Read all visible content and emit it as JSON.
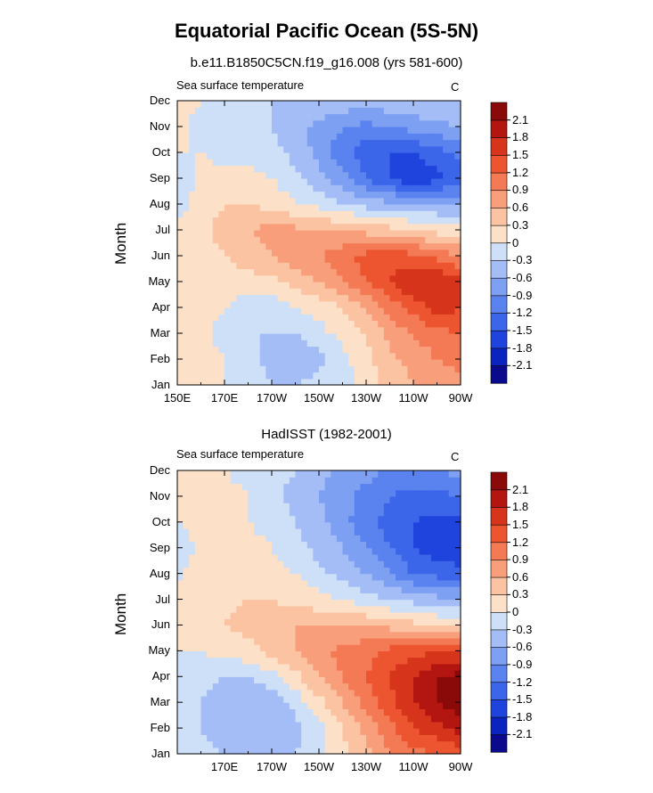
{
  "title": "Equatorial Pacific Ocean (5S-5N)",
  "units": "C",
  "chart_data": [
    {
      "type": "heatmap",
      "title": "b.e11.B1850C5CN.f19_g16.008 (yrs 581-600)",
      "subtitle": "Sea surface temperature",
      "units": "C",
      "ylabel": "Month",
      "xlabel": "",
      "x_tick_labels": [
        "150E",
        "170E",
        "170W",
        "150W",
        "130W",
        "110W",
        "90W"
      ],
      "y_tick_labels": [
        "Jan",
        "Feb",
        "Mar",
        "Apr",
        "May",
        "Jun",
        "Jul",
        "Aug",
        "Sep",
        "Oct",
        "Nov",
        "Dec"
      ],
      "colorbar_labels": [
        "2.1",
        "1.8",
        "1.5",
        "1.2",
        "0.9",
        "0.6",
        "0.3",
        "0",
        "-0.3",
        "-0.6",
        "-0.9",
        "-1.2",
        "-1.5",
        "-1.8",
        "-2.1"
      ],
      "longitudes": [
        150,
        160,
        170,
        180,
        190,
        200,
        210,
        220,
        230,
        240,
        250,
        260,
        270
      ],
      "months": [
        "Jan",
        "Feb",
        "Mar",
        "Apr",
        "May",
        "Jun",
        "Jul",
        "Aug",
        "Sep",
        "Oct",
        "Nov",
        "Dec"
      ],
      "values": [
        [
          0.0,
          0.1,
          0.0,
          -0.1,
          -0.3,
          -0.3,
          -0.2,
          -0.1,
          0.1,
          0.4,
          0.6,
          0.7,
          0.8
        ],
        [
          0.0,
          0.1,
          0.0,
          -0.2,
          -0.4,
          -0.5,
          -0.4,
          -0.1,
          0.2,
          0.5,
          0.7,
          0.9,
          1.0
        ],
        [
          0.1,
          0.1,
          -0.1,
          -0.3,
          -0.3,
          -0.3,
          -0.1,
          0.1,
          0.3,
          0.7,
          0.9,
          1.1,
          1.2
        ],
        [
          0.1,
          0.1,
          0.0,
          -0.2,
          -0.2,
          0.0,
          0.1,
          0.3,
          0.6,
          1.0,
          1.3,
          1.7,
          1.5
        ],
        [
          0.2,
          0.2,
          0.2,
          0.2,
          0.2,
          0.4,
          0.6,
          0.9,
          1.2,
          1.5,
          1.8,
          1.8,
          1.6
        ],
        [
          0.1,
          0.2,
          0.3,
          0.4,
          0.6,
          0.8,
          0.9,
          1.1,
          1.3,
          1.4,
          1.3,
          1.1,
          0.9
        ],
        [
          0.1,
          0.2,
          0.4,
          0.6,
          0.7,
          0.7,
          0.6,
          0.6,
          0.5,
          0.4,
          0.3,
          0.2,
          0.1
        ],
        [
          -0.2,
          0.2,
          0.3,
          0.3,
          0.2,
          0.0,
          -0.1,
          -0.3,
          -0.4,
          -0.5,
          -0.6,
          -0.6,
          -0.6
        ],
        [
          -0.3,
          0.1,
          0.1,
          0.1,
          0.0,
          -0.2,
          -0.5,
          -0.8,
          -1.2,
          -1.5,
          -1.8,
          -1.6,
          -1.4
        ],
        [
          0.0,
          0.0,
          -0.1,
          -0.1,
          -0.2,
          -0.4,
          -0.7,
          -1.1,
          -1.4,
          -1.5,
          -1.5,
          -1.3,
          -1.1
        ],
        [
          0.1,
          -0.1,
          -0.1,
          -0.2,
          -0.3,
          -0.5,
          -0.7,
          -0.9,
          -1.0,
          -0.9,
          -0.8,
          -0.7,
          -0.6
        ],
        [
          0.1,
          0.0,
          -0.1,
          -0.2,
          -0.3,
          -0.3,
          -0.3,
          -0.4,
          -0.4,
          -0.4,
          -0.3,
          -0.3,
          -0.3
        ]
      ]
    },
    {
      "type": "heatmap",
      "title": "HadISST (1982-2001)",
      "subtitle": "Sea surface temperature",
      "units": "C",
      "ylabel": "Month",
      "xlabel": "",
      "x_tick_labels": [
        "170E",
        "170W",
        "150W",
        "130W",
        "110W",
        "90W"
      ],
      "y_tick_labels": [
        "Jan",
        "Feb",
        "Mar",
        "Apr",
        "May",
        "Jun",
        "Jul",
        "Aug",
        "Sep",
        "Oct",
        "Nov",
        "Dec"
      ],
      "colorbar_labels": [
        "2.1",
        "1.8",
        "1.5",
        "1.2",
        "0.9",
        "0.6",
        "0.3",
        "0",
        "-0.3",
        "-0.6",
        "-0.9",
        "-1.2",
        "-1.5",
        "-1.8",
        "-2.1"
      ],
      "longitudes": [
        150,
        160,
        170,
        180,
        190,
        200,
        210,
        220,
        230,
        240,
        250,
        260,
        270
      ],
      "months": [
        "Jan",
        "Feb",
        "Mar",
        "Apr",
        "May",
        "Jun",
        "Jul",
        "Aug",
        "Sep",
        "Oct",
        "Nov",
        "Dec"
      ],
      "values": [
        [
          0.0,
          -0.2,
          -0.3,
          -0.4,
          -0.4,
          -0.3,
          -0.1,
          0.2,
          0.5,
          0.9,
          1.1,
          1.2,
          1.3
        ],
        [
          -0.1,
          -0.3,
          -0.5,
          -0.6,
          -0.6,
          -0.4,
          -0.1,
          0.3,
          0.7,
          1.1,
          1.5,
          1.7,
          1.9
        ],
        [
          -0.1,
          -0.3,
          -0.5,
          -0.6,
          -0.5,
          -0.2,
          0.2,
          0.6,
          1.0,
          1.4,
          1.8,
          2.1,
          2.3
        ],
        [
          -0.1,
          -0.2,
          -0.3,
          -0.3,
          -0.1,
          0.2,
          0.6,
          0.9,
          1.2,
          1.5,
          1.8,
          2.1,
          2.2
        ],
        [
          0.0,
          0.0,
          0.1,
          0.2,
          0.4,
          0.6,
          0.8,
          1.0,
          1.1,
          1.3,
          1.4,
          1.5,
          1.5
        ],
        [
          0.1,
          0.2,
          0.3,
          0.4,
          0.5,
          0.6,
          0.6,
          0.6,
          0.6,
          0.5,
          0.4,
          0.3,
          0.2
        ],
        [
          0.1,
          0.2,
          0.2,
          0.3,
          0.3,
          0.2,
          0.1,
          0.0,
          -0.2,
          -0.3,
          -0.4,
          -0.5,
          -0.6
        ],
        [
          -0.1,
          0.2,
          0.2,
          0.2,
          0.1,
          0.0,
          -0.2,
          -0.4,
          -0.6,
          -0.9,
          -1.2,
          -1.3,
          -1.4
        ],
        [
          -0.2,
          0.1,
          0.2,
          0.1,
          0.0,
          -0.2,
          -0.4,
          -0.6,
          -0.9,
          -1.2,
          -1.5,
          -1.7,
          -1.7
        ],
        [
          0.0,
          0.1,
          0.1,
          0.0,
          -0.1,
          -0.3,
          -0.5,
          -0.8,
          -1.1,
          -1.3,
          -1.5,
          -1.6,
          -1.6
        ],
        [
          0.1,
          0.1,
          0.1,
          0.0,
          -0.2,
          -0.4,
          -0.6,
          -0.8,
          -1.0,
          -1.2,
          -1.3,
          -1.3,
          -1.2
        ],
        [
          0.1,
          0.1,
          0.0,
          -0.1,
          -0.2,
          -0.3,
          -0.5,
          -0.7,
          -0.8,
          -1.0,
          -1.0,
          -0.9,
          -0.8
        ]
      ]
    }
  ],
  "colors": {
    "levels": [
      -2.1,
      -1.8,
      -1.5,
      -1.2,
      -0.9,
      -0.6,
      -0.3,
      0,
      0.3,
      0.6,
      0.9,
      1.2,
      1.5,
      1.8,
      2.1
    ],
    "palette": [
      "#0a0a8c",
      "#0b24c0",
      "#1f44dd",
      "#3c66e9",
      "#5a83ef",
      "#7ea0f3",
      "#a4bdf6",
      "#cde0f8",
      "#fde0c8",
      "#fcc3a2",
      "#f99e7b",
      "#f47a55",
      "#ed5531",
      "#d6341b",
      "#b31610",
      "#8a0a0a"
    ]
  }
}
